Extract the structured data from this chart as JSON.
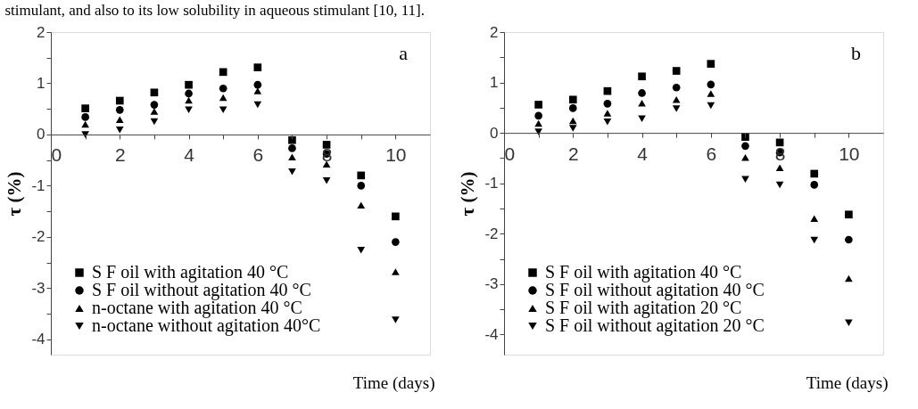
{
  "chart_data": [
    {
      "type": "scatter",
      "xlabel": "Time (days)",
      "ylabel": "τ (%)",
      "annotations": [
        "stimulant, and also to its low solubility in aqueous stimulant [10, 11].",
        "a"
      ],
      "x": [
        1,
        2,
        3,
        4,
        5,
        6,
        7,
        8,
        9,
        10
      ],
      "series": [
        {
          "name": "S F oil with agitation 40 °C",
          "color": "#000000",
          "marker": "square",
          "values": [
            0.51,
            0.66,
            0.82,
            0.97,
            1.22,
            1.31,
            -0.11,
            -0.2,
            -0.8,
            -1.6
          ]
        },
        {
          "name": "S F oil without agitation 40 °C",
          "color": "#000000",
          "marker": "circle",
          "values": [
            0.34,
            0.48,
            0.58,
            0.8,
            0.9,
            0.97,
            -0.27,
            -0.38,
            -1.0,
            -2.1
          ]
        },
        {
          "name": "n-octane with agitation 40 °C",
          "color": "#000000",
          "marker": "triangle",
          "values": [
            0.2,
            0.29,
            0.45,
            0.67,
            0.72,
            0.85,
            -0.44,
            -0.58,
            -1.38,
            -2.68
          ]
        },
        {
          "name": "n-octane without agitation 40°C",
          "color": "#000000",
          "marker": "triangle-down",
          "values": [
            0.0,
            0.09,
            0.25,
            0.48,
            0.48,
            0.58,
            -0.73,
            -0.9,
            -2.26,
            -3.62
          ]
        }
      ],
      "xlim": [
        0,
        11
      ],
      "ylim": [
        -4.3,
        2
      ],
      "xticks": [
        0,
        {
          "value": 1,
          "label": null
        },
        2,
        {
          "value": 3,
          "label": null
        },
        4,
        {
          "value": 5,
          "label": null
        },
        6,
        {
          "value": 7,
          "label": null
        },
        8,
        {
          "value": 9,
          "label": null
        },
        10
      ],
      "yticks": [
        -4,
        {
          "value": -3.5,
          "label": null
        },
        -3,
        {
          "value": -2.5,
          "label": null
        },
        -2,
        {
          "value": -1.5,
          "label": null
        },
        -1,
        {
          "value": -0.5,
          "label": null
        },
        0,
        {
          "value": 0.5,
          "label": null
        },
        1,
        {
          "value": 1.5,
          "label": null
        },
        2
      ],
      "legend": "bottom left",
      "grid": false
    },
    {
      "type": "scatter",
      "xlabel": "Time (days)",
      "ylabel": "τ (%)",
      "annotations": [
        "b"
      ],
      "x": [
        1,
        2,
        3,
        4,
        5,
        6,
        7,
        8,
        9,
        10
      ],
      "series": [
        {
          "name": "S F oil with agitation 40 °C",
          "color": "#000000",
          "marker": "square",
          "values": [
            0.56,
            0.66,
            0.83,
            1.12,
            1.23,
            1.37,
            -0.08,
            -0.19,
            -0.81,
            -1.62
          ]
        },
        {
          "name": "S F oil without agitation 40 °C",
          "color": "#000000",
          "marker": "circle",
          "values": [
            0.34,
            0.49,
            0.58,
            0.79,
            0.9,
            0.96,
            -0.26,
            -0.39,
            -1.03,
            -2.12
          ]
        },
        {
          "name": "S F oil with agitation 20 °C",
          "color": "#000000",
          "marker": "triangle",
          "values": [
            0.19,
            0.24,
            0.39,
            0.59,
            0.66,
            0.78,
            -0.49,
            -0.69,
            -1.7,
            -2.89
          ]
        },
        {
          "name": "S F oil without agitation 20 °C",
          "color": "#000000",
          "marker": "triangle-down",
          "values": [
            0.02,
            0.09,
            0.22,
            0.28,
            0.48,
            0.54,
            -0.92,
            -1.03,
            -2.13,
            -3.77
          ]
        }
      ],
      "xlim": [
        0,
        11
      ],
      "ylim": [
        -4.4,
        2
      ],
      "xticks": [
        0,
        {
          "value": 1,
          "label": null
        },
        2,
        {
          "value": 3,
          "label": null
        },
        4,
        {
          "value": 5,
          "label": null
        },
        6,
        {
          "value": 7,
          "label": null
        },
        8,
        {
          "value": 9,
          "label": null
        },
        10
      ],
      "yticks": [
        -4,
        {
          "value": -3.5,
          "label": null
        },
        -3,
        {
          "value": -2.5,
          "label": null
        },
        -2,
        {
          "value": -1.5,
          "label": null
        },
        -1,
        {
          "value": -0.5,
          "label": null
        },
        0,
        {
          "value": 0.5,
          "label": null
        },
        1,
        {
          "value": 1.5,
          "label": null
        },
        2
      ],
      "legend": "bottom left",
      "grid": false
    }
  ]
}
